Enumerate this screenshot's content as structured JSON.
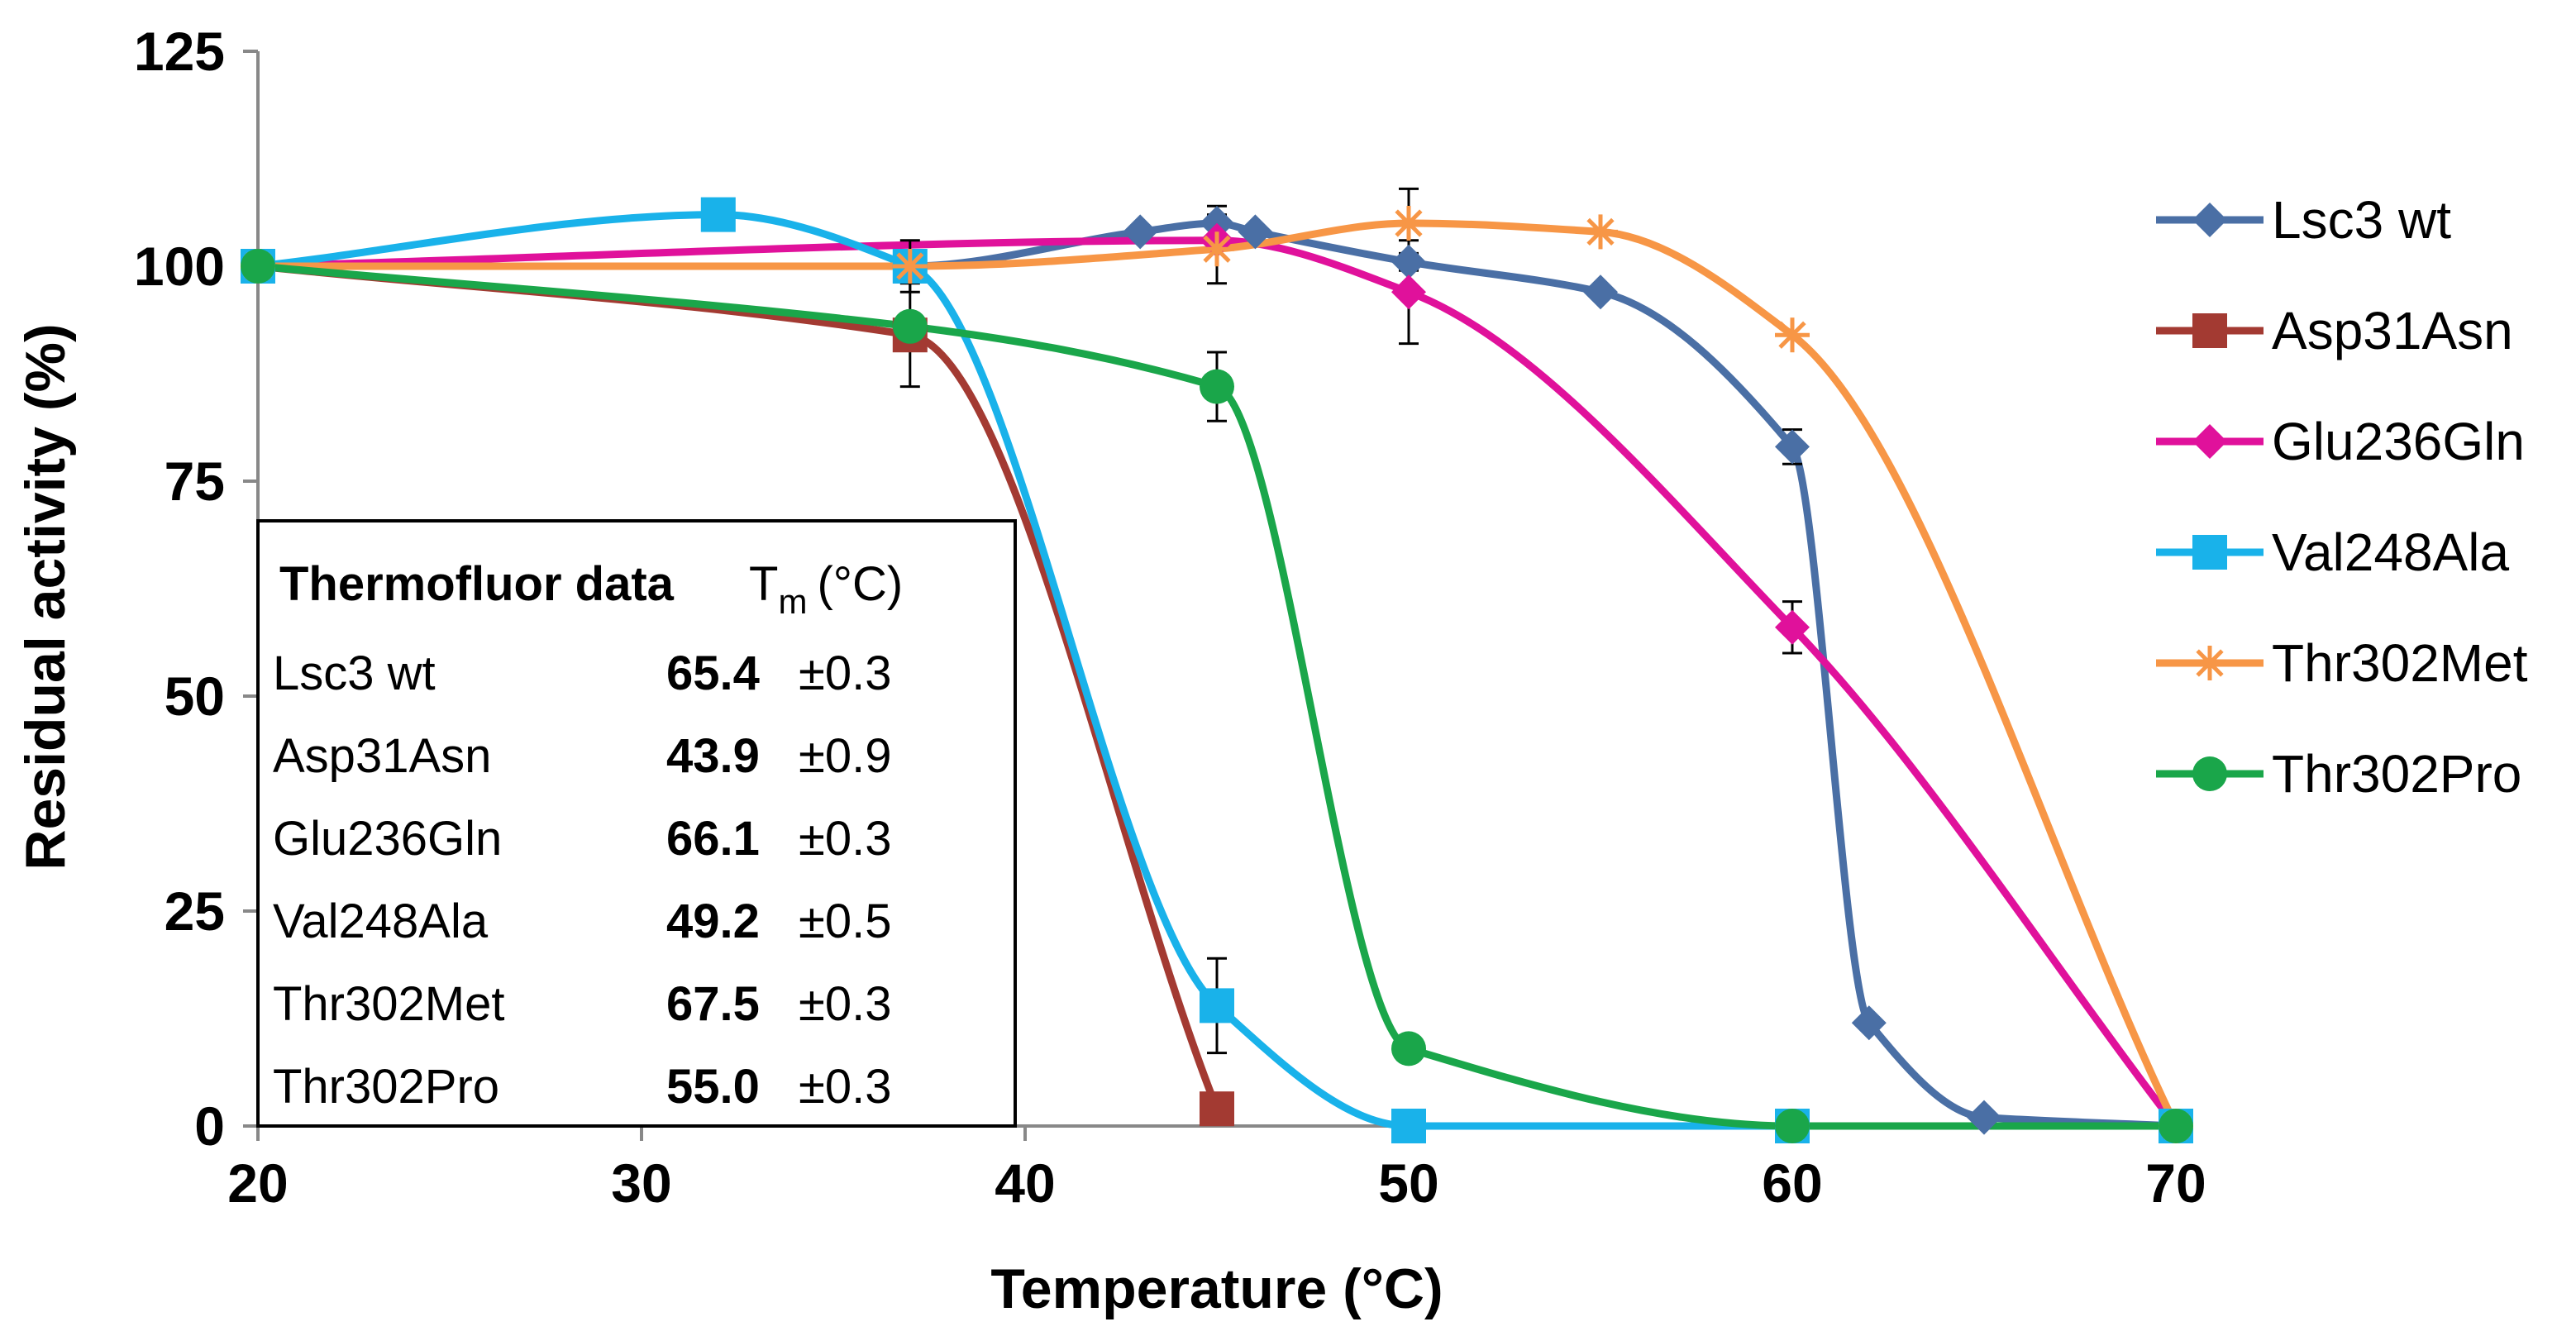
{
  "chart_data": {
    "type": "line",
    "title": "",
    "xlabel": "Temperature (°C)",
    "ylabel": "Residual activity (%)",
    "xlim": [
      20,
      70
    ],
    "ylim": [
      0,
      125
    ],
    "x_ticks": [
      "20",
      "30",
      "40",
      "50",
      "60",
      "70"
    ],
    "y_ticks": [
      "0",
      "25",
      "50",
      "75",
      "100",
      "125"
    ],
    "grid": false,
    "legend_position": "right",
    "series": [
      {
        "name": "Lsc3 wt",
        "color": "#4a6fa5",
        "marker": "diamond",
        "points": [
          [
            20,
            100
          ],
          [
            37,
            100
          ],
          [
            43,
            104
          ],
          [
            45,
            105
          ],
          [
            46,
            104
          ],
          [
            50,
            100.5
          ],
          [
            55,
            97
          ],
          [
            60,
            79
          ],
          [
            62,
            12
          ],
          [
            65,
            1
          ],
          [
            70,
            0
          ]
        ],
        "errors": [
          [
            45,
            2
          ],
          [
            50,
            1
          ],
          [
            60,
            2
          ]
        ]
      },
      {
        "name": "Asp31Asn",
        "color": "#a33a32",
        "marker": "square",
        "points": [
          [
            20,
            100
          ],
          [
            37,
            92
          ],
          [
            45,
            2
          ]
        ],
        "errors": [
          [
            37,
            6
          ]
        ]
      },
      {
        "name": "Glu236Gln",
        "color": "#e0119b",
        "marker": "diamond",
        "points": [
          [
            20,
            100
          ],
          [
            45,
            103
          ],
          [
            50,
            97
          ],
          [
            60,
            58
          ],
          [
            70,
            0
          ]
        ],
        "errors": [
          [
            50,
            6
          ],
          [
            60,
            3
          ]
        ]
      },
      {
        "name": "Val248Ala",
        "color": "#19b2ea",
        "marker": "square",
        "points": [
          [
            20,
            100
          ],
          [
            32,
            106
          ],
          [
            37,
            100
          ],
          [
            45,
            14
          ],
          [
            50,
            0
          ],
          [
            60,
            0
          ],
          [
            70,
            0
          ]
        ],
        "errors": [
          [
            37,
            3
          ],
          [
            45,
            5.5
          ]
        ]
      },
      {
        "name": "Thr302Met",
        "color": "#f79646",
        "marker": "star",
        "points": [
          [
            20,
            100
          ],
          [
            37,
            100
          ],
          [
            45,
            102
          ],
          [
            50,
            105
          ],
          [
            55,
            104
          ],
          [
            60,
            92
          ],
          [
            70,
            0
          ]
        ],
        "errors": [
          [
            45,
            4
          ],
          [
            50,
            4
          ]
        ]
      },
      {
        "name": "Thr302Pro",
        "color": "#1aa64a",
        "marker": "circle",
        "points": [
          [
            20,
            100
          ],
          [
            37,
            93
          ],
          [
            45,
            86
          ],
          [
            50,
            9
          ],
          [
            60,
            0
          ],
          [
            70,
            0
          ]
        ],
        "errors": [
          [
            45,
            4
          ]
        ]
      }
    ],
    "inset_table": {
      "header_name": "Thermofluor data",
      "header_tm": "T",
      "header_tm_sub": "m",
      "header_tm_unit": "(°C)",
      "rows": [
        {
          "name": "Lsc3 wt",
          "tm": "65.4",
          "err": "±0.3"
        },
        {
          "name": "Asp31Asn",
          "tm": "43.9",
          "err": "±0.9"
        },
        {
          "name": "Glu236Gln",
          "tm": "66.1",
          "err": "±0.3"
        },
        {
          "name": "Val248Ala",
          "tm": "49.2",
          "err": "±0.5"
        },
        {
          "name": "Thr302Met",
          "tm": "67.5",
          "err": "±0.3"
        },
        {
          "name": "Thr302Pro",
          "tm": "55.0",
          "err": "±0.3"
        }
      ]
    }
  }
}
